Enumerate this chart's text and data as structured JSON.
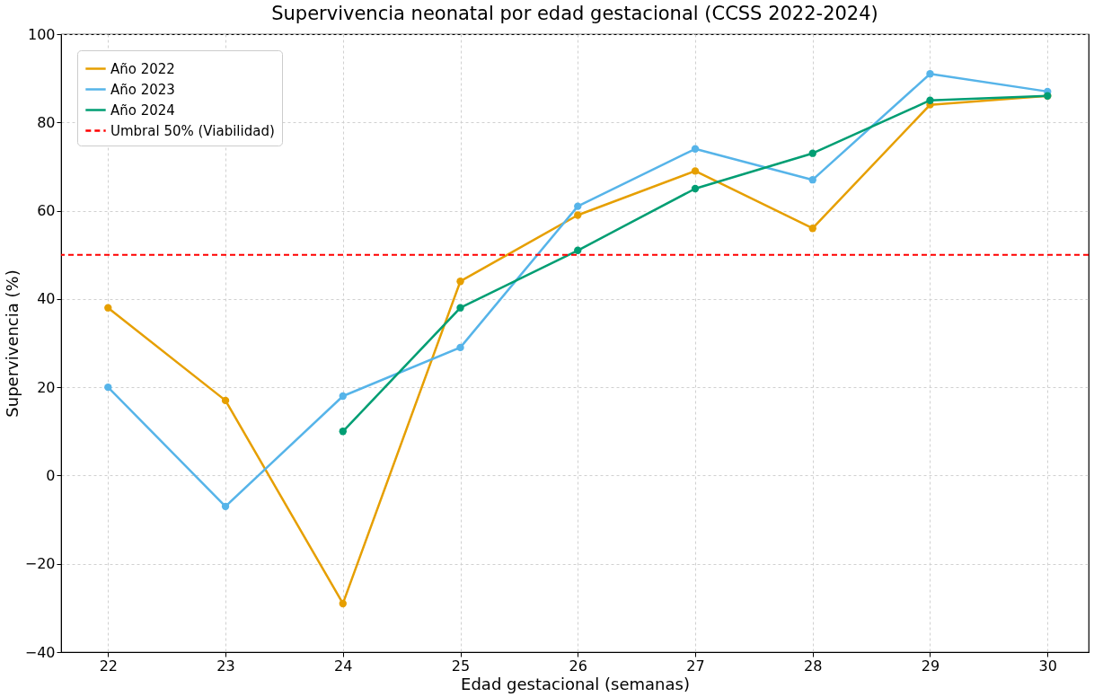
{
  "chart_data": {
    "type": "line",
    "title": "Supervivencia neonatal por edad gestacional (CCSS 2022-2024)",
    "xlabel": "Edad gestacional (semanas)",
    "ylabel": "Supervivencia (%)",
    "x": [
      22,
      23,
      24,
      25,
      26,
      27,
      28,
      29,
      30
    ],
    "series": [
      {
        "name": "Año 2022",
        "color": "#e69f00",
        "values": [
          38,
          17,
          -29,
          44,
          59,
          69,
          56,
          84,
          86
        ]
      },
      {
        "name": "Año 2023",
        "color": "#56b4e9",
        "values": [
          20,
          -7,
          18,
          29,
          61,
          74,
          67,
          91,
          87
        ]
      },
      {
        "name": "Año 2024",
        "color": "#009e73",
        "values": [
          null,
          null,
          10,
          38,
          51,
          65,
          73,
          85,
          86
        ]
      }
    ],
    "ref_lines": [
      {
        "axis": "y",
        "value": 50,
        "label": "Umbral 50% (Viabilidad)",
        "color": "#ff0000",
        "line_style": "dashed"
      }
    ],
    "xlim": [
      21.6,
      30.35
    ],
    "xticks": [
      22,
      23,
      24,
      25,
      26,
      27,
      28,
      29,
      30
    ],
    "ylim": [
      -40,
      100
    ],
    "yticks": [
      -40,
      -20,
      0,
      20,
      40,
      60,
      80,
      100
    ],
    "grid": true,
    "legend": "top left",
    "marker": "circle",
    "line_style": "solid"
  }
}
